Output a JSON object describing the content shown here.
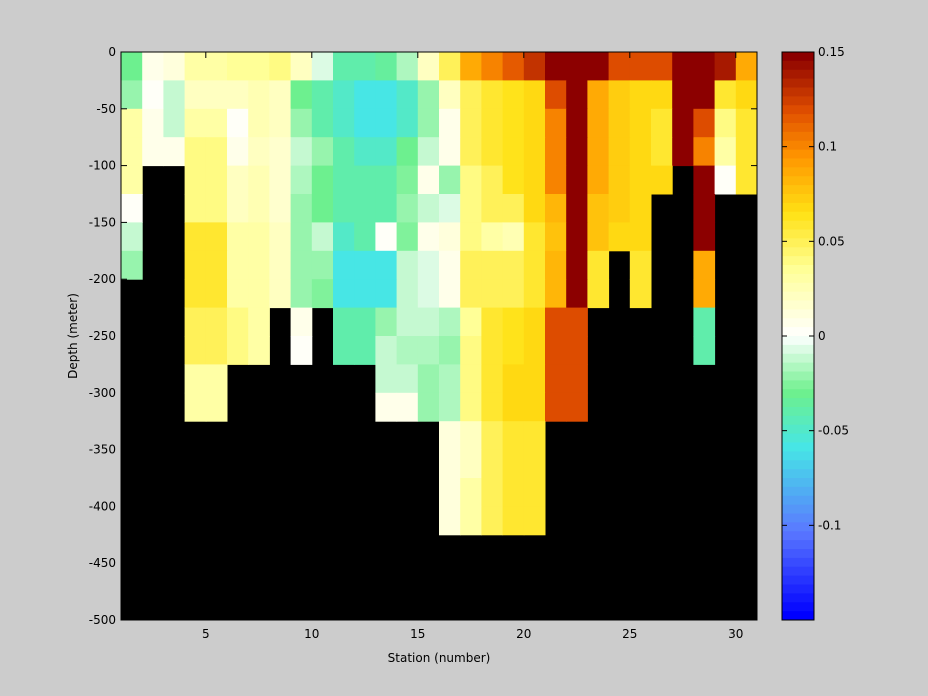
{
  "chart_data": {
    "type": "heatmap",
    "title": "",
    "xlabel": "Station (number)",
    "ylabel": "Depth (meter)",
    "xlim": [
      1,
      31
    ],
    "ylim": [
      -500,
      0
    ],
    "x_ticks": [
      5,
      10,
      15,
      20,
      25,
      30
    ],
    "y_ticks": [
      0,
      -50,
      -100,
      -150,
      -200,
      -250,
      -300,
      -350,
      -400,
      -450,
      -500
    ],
    "colorbar": {
      "range": [
        -0.15,
        0.15
      ],
      "ticks": [
        0.15,
        0.1,
        0.05,
        0,
        -0.05,
        -0.1
      ],
      "colormap": "jet-like with white center",
      "levels": 64
    },
    "mask_color": "#000000",
    "background_color": "#cccccc",
    "stations": [
      1,
      2,
      3,
      4,
      5,
      6,
      7,
      8,
      9,
      10,
      11,
      12,
      13,
      14,
      15,
      16,
      17,
      18,
      19,
      20,
      21,
      22,
      23,
      24,
      25,
      26,
      27,
      28,
      29,
      30
    ],
    "depth_levels": [
      0,
      -25,
      -50,
      -75,
      -100,
      -125,
      -150,
      -175,
      -200,
      -225,
      -250,
      -275,
      -300,
      -325,
      -350,
      -375,
      -400,
      -425,
      -450,
      -475
    ],
    "bottom_depths": [
      -200,
      -100,
      -100,
      -300,
      -300,
      -250,
      -250,
      -200,
      -250,
      -200,
      -250,
      -250,
      -300,
      -300,
      -400,
      -400,
      -400,
      -400,
      -400,
      -300,
      -300,
      -200,
      -200,
      -150,
      -200,
      -150,
      -100,
      -250,
      -150,
      -125
    ],
    "values": [
      [
        -0.03,
        0.005,
        0.01,
        0.03,
        0.03,
        0.035,
        0.035,
        0.04,
        0.02,
        -0.005,
        -0.04,
        -0.04,
        -0.035,
        -0.015,
        0.02,
        0.05,
        0.09,
        0.1,
        0.115,
        0.13,
        0.15,
        0.15,
        0.15,
        0.12,
        0.12,
        0.12,
        0.15,
        0.15,
        0.14,
        0.09
      ],
      [
        -0.02,
        0.0,
        -0.01,
        0.02,
        0.02,
        0.02,
        0.025,
        0.02,
        -0.03,
        -0.04,
        -0.05,
        -0.06,
        -0.06,
        -0.05,
        -0.02,
        0.02,
        0.05,
        0.06,
        0.065,
        0.07,
        0.12,
        0.15,
        0.09,
        0.075,
        0.07,
        0.07,
        0.15,
        0.15,
        0.06,
        0.07
      ],
      [
        0.03,
        0.005,
        -0.01,
        0.03,
        0.03,
        0.0,
        0.025,
        0.02,
        -0.02,
        -0.04,
        -0.05,
        -0.06,
        -0.06,
        -0.05,
        -0.02,
        0.005,
        0.05,
        0.06,
        0.065,
        0.07,
        0.1,
        0.15,
        0.09,
        0.075,
        0.07,
        0.06,
        0.15,
        0.12,
        0.04,
        0.06
      ],
      [
        0.03,
        0.005,
        0.005,
        0.04,
        0.04,
        0.005,
        0.02,
        0.015,
        -0.01,
        -0.02,
        -0.04,
        -0.05,
        -0.05,
        -0.03,
        -0.01,
        0.005,
        0.05,
        0.06,
        0.065,
        0.07,
        0.1,
        0.15,
        0.09,
        0.075,
        0.07,
        0.06,
        0.15,
        0.1,
        0.03,
        0.06
      ],
      [
        0.03,
        null,
        null,
        0.04,
        0.04,
        0.02,
        0.025,
        0.015,
        -0.015,
        -0.03,
        -0.04,
        -0.04,
        -0.04,
        -0.025,
        0.005,
        -0.02,
        0.04,
        0.05,
        0.065,
        0.07,
        0.1,
        0.15,
        0.09,
        0.075,
        0.07,
        0.07,
        null,
        0.15,
        0.0,
        0.06
      ],
      [
        0.0,
        null,
        null,
        0.04,
        0.04,
        0.02,
        0.025,
        0.015,
        -0.02,
        -0.03,
        -0.04,
        -0.04,
        -0.04,
        -0.02,
        -0.01,
        -0.005,
        0.04,
        0.05,
        0.05,
        0.07,
        0.085,
        0.15,
        0.08,
        0.075,
        0.07,
        null,
        null,
        0.15,
        null,
        null
      ],
      [
        -0.01,
        null,
        null,
        0.06,
        0.06,
        0.03,
        0.03,
        0.02,
        -0.02,
        -0.01,
        -0.05,
        -0.04,
        0.0,
        -0.025,
        0.005,
        0.01,
        0.04,
        0.03,
        0.025,
        0.06,
        0.08,
        0.15,
        0.08,
        0.07,
        0.07,
        null,
        null,
        0.15,
        null,
        null
      ],
      [
        -0.02,
        null,
        null,
        0.06,
        0.06,
        0.03,
        0.03,
        0.02,
        -0.02,
        -0.02,
        -0.06,
        -0.06,
        -0.06,
        -0.01,
        -0.005,
        0.005,
        0.05,
        0.05,
        0.05,
        0.06,
        0.085,
        0.15,
        0.06,
        null,
        0.06,
        null,
        null,
        0.09,
        null,
        null
      ],
      [
        null,
        null,
        null,
        0.06,
        0.06,
        0.03,
        0.03,
        0.02,
        -0.02,
        -0.025,
        -0.06,
        -0.06,
        -0.06,
        -0.01,
        -0.005,
        0.005,
        0.05,
        0.05,
        0.05,
        0.06,
        0.085,
        0.15,
        0.06,
        null,
        0.06,
        null,
        null,
        0.09,
        null,
        null
      ],
      [
        null,
        null,
        null,
        0.05,
        0.05,
        0.04,
        0.03,
        null,
        0.005,
        null,
        -0.04,
        -0.04,
        -0.02,
        -0.01,
        -0.01,
        -0.015,
        0.035,
        0.06,
        0.065,
        0.07,
        0.12,
        0.12,
        null,
        null,
        null,
        null,
        null,
        -0.04,
        null,
        null
      ],
      [
        null,
        null,
        null,
        0.05,
        0.05,
        0.04,
        0.03,
        null,
        0.0,
        null,
        -0.04,
        -0.04,
        -0.01,
        -0.015,
        -0.015,
        -0.02,
        0.04,
        0.06,
        0.065,
        0.07,
        0.12,
        0.12,
        null,
        null,
        null,
        null,
        null,
        -0.04,
        null,
        null
      ],
      [
        null,
        null,
        null,
        0.03,
        0.03,
        null,
        null,
        null,
        null,
        null,
        null,
        null,
        -0.01,
        -0.01,
        -0.02,
        -0.015,
        0.04,
        0.06,
        0.07,
        0.07,
        0.12,
        0.12,
        null,
        null,
        null,
        null,
        null,
        null,
        null,
        null
      ],
      [
        null,
        null,
        null,
        0.03,
        0.03,
        null,
        null,
        null,
        null,
        null,
        null,
        null,
        0.005,
        0.005,
        -0.02,
        -0.015,
        0.04,
        0.06,
        0.07,
        0.07,
        0.12,
        0.12,
        null,
        null,
        null,
        null,
        null,
        null,
        null,
        null
      ],
      [
        null,
        null,
        null,
        null,
        null,
        null,
        null,
        null,
        null,
        null,
        null,
        null,
        null,
        null,
        null,
        0.01,
        0.02,
        0.05,
        0.06,
        0.06,
        null,
        null,
        null,
        null,
        null,
        null,
        null,
        null,
        null,
        null
      ],
      [
        null,
        null,
        null,
        null,
        null,
        null,
        null,
        null,
        null,
        null,
        null,
        null,
        null,
        null,
        null,
        0.01,
        0.02,
        0.05,
        0.06,
        0.06,
        null,
        null,
        null,
        null,
        null,
        null,
        null,
        null,
        null,
        null
      ],
      [
        null,
        null,
        null,
        null,
        null,
        null,
        null,
        null,
        null,
        null,
        null,
        null,
        null,
        null,
        null,
        0.01,
        0.03,
        0.05,
        0.06,
        0.06,
        null,
        null,
        null,
        null,
        null,
        null,
        null,
        null,
        null,
        null
      ],
      [
        null,
        null,
        null,
        null,
        null,
        null,
        null,
        null,
        null,
        null,
        null,
        null,
        null,
        null,
        null,
        0.01,
        0.03,
        0.05,
        0.06,
        0.06,
        null,
        null,
        null,
        null,
        null,
        null,
        null,
        null,
        null,
        null
      ],
      [
        null,
        null,
        null,
        null,
        null,
        null,
        null,
        null,
        null,
        null,
        null,
        null,
        null,
        null,
        null,
        null,
        null,
        null,
        null,
        null,
        null,
        null,
        null,
        null,
        null,
        null,
        null,
        null,
        null,
        null
      ],
      [
        null,
        null,
        null,
        null,
        null,
        null,
        null,
        null,
        null,
        null,
        null,
        null,
        null,
        null,
        null,
        null,
        null,
        null,
        null,
        null,
        null,
        null,
        null,
        null,
        null,
        null,
        null,
        null,
        null,
        null
      ],
      [
        null,
        null,
        null,
        null,
        null,
        null,
        null,
        null,
        null,
        null,
        null,
        null,
        null,
        null,
        null,
        null,
        null,
        null,
        null,
        null,
        null,
        null,
        null,
        null,
        null,
        null,
        null,
        null,
        null,
        null
      ]
    ]
  }
}
